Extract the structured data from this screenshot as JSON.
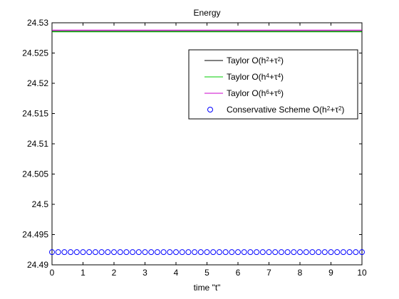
{
  "chart_data": {
    "type": "line",
    "title": "Energy",
    "xlabel": "time \"t\"",
    "ylabel": "",
    "xlim": [
      0,
      10
    ],
    "ylim": [
      24.49,
      24.53
    ],
    "xticks": [
      0,
      1,
      2,
      3,
      4,
      5,
      6,
      7,
      8,
      9,
      10
    ],
    "xtick_labels": [
      "0",
      "1",
      "2",
      "3",
      "4",
      "5",
      "6",
      "7",
      "8",
      "9",
      "10"
    ],
    "yticks": [
      24.49,
      24.495,
      24.5,
      24.505,
      24.51,
      24.515,
      24.52,
      24.525,
      24.53
    ],
    "ytick_labels": [
      "24.49",
      "24.495",
      "24.5",
      "24.505",
      "24.51",
      "24.515",
      "24.52",
      "24.525",
      "24.53"
    ],
    "grid": false,
    "legend_position": "top-right",
    "series": [
      {
        "name_parts": [
          [
            "Taylor O(h",
            ""
          ],
          [
            "2",
            "sup"
          ],
          [
            "+τ",
            ""
          ],
          [
            "2",
            "sup"
          ],
          [
            ")",
            ""
          ]
        ],
        "style": "line",
        "color": "#000000",
        "x": [
          0,
          10
        ],
        "y": [
          24.5286,
          24.5286
        ]
      },
      {
        "name_parts": [
          [
            "Taylor O(h",
            ""
          ],
          [
            "4",
            "sup"
          ],
          [
            "+τ",
            ""
          ],
          [
            "4",
            "sup"
          ],
          [
            ")",
            ""
          ]
        ],
        "style": "line",
        "color": "#00cc00",
        "x": [
          0,
          10
        ],
        "y": [
          24.5285,
          24.5285
        ]
      },
      {
        "name_parts": [
          [
            "Taylor O(h",
            ""
          ],
          [
            "6",
            "sup"
          ],
          [
            "+τ",
            ""
          ],
          [
            "6",
            "sup"
          ],
          [
            ")",
            ""
          ]
        ],
        "style": "line",
        "color": "#cc00cc",
        "x": [
          0,
          10
        ],
        "y": [
          24.5288,
          24.5288
        ]
      },
      {
        "name_parts": [
          [
            "Conservative Scheme O(h",
            ""
          ],
          [
            "2",
            "sup"
          ],
          [
            "+τ",
            ""
          ],
          [
            "2",
            "sup"
          ],
          [
            ")",
            ""
          ]
        ],
        "style": "marker",
        "color": "#0000ff",
        "x_start": 0,
        "x_step": 0.2,
        "x_end": 10,
        "y_value": 24.4921
      }
    ]
  }
}
